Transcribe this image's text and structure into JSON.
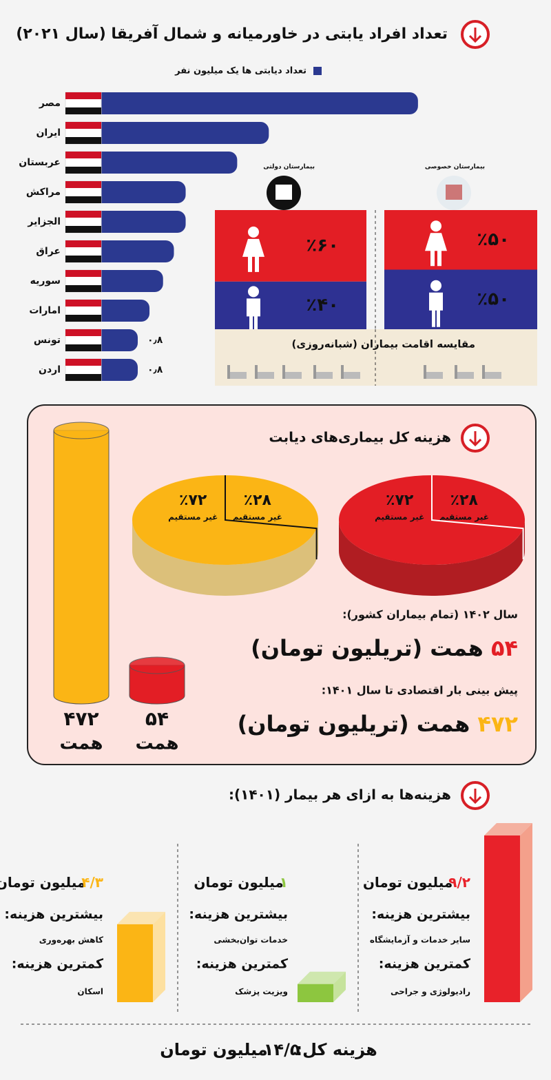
{
  "chart_data": [
    {
      "type": "bar",
      "orientation": "horizontal",
      "title": "تعداد افراد یابتی در خاورمیانه و شمال آفریقا (سال ۲۰۲۱)",
      "legend": "تعداد دیابتی ها یک میلیون نفر",
      "categories": [
        "مصر",
        "ایران",
        "عربستان",
        "مراکش",
        "الجزایر",
        "عراق",
        "سوریه",
        "امارات",
        "تونس",
        "اردن"
      ],
      "values": [
        3.9,
        2.25,
        1.9,
        1.33,
        1.33,
        1.2,
        1.08,
        0.93,
        0.8,
        0.8
      ],
      "value_labels": [
        null,
        null,
        null,
        null,
        null,
        null,
        null,
        null,
        "۰٫۸",
        "۰٫۸"
      ],
      "xlim": [
        0,
        4
      ],
      "color": "#2b3990"
    },
    {
      "type": "share",
      "categories": [
        "بیمارستان خصوصی",
        "بیمارستان دولتی"
      ],
      "series": [
        {
          "color": "#e31e25",
          "label_color": "#f7b21d",
          "values": [
            50,
            60
          ],
          "value_labels": [
            "٪۵۰",
            "٪۶۰"
          ]
        },
        {
          "color": "#2e3192",
          "label_color": "#ffffff",
          "values": [
            50,
            40
          ],
          "value_labels": [
            "٪۵۰",
            "٪۴۰"
          ]
        }
      ],
      "caption": "مقایسه اقامت بیماران (شبانه‌روزی)"
    },
    {
      "type": "pie",
      "title": "هزینه کل بیماری‌های دیابت",
      "categories": [
        "غیر مستقیم",
        "غیر مستقیم"
      ],
      "values": [
        28,
        72
      ],
      "value_labels": [
        "٪۲۸",
        "٪۷۲"
      ],
      "color": "#e31e25",
      "side_color": "#b01d22",
      "label_color": "#ffffff"
    },
    {
      "type": "pie",
      "categories": [
        "غیر مستقیم",
        "غیر مستقیم"
      ],
      "values": [
        28,
        72
      ],
      "value_labels": [
        "٪۲۸",
        "٪۷۲"
      ],
      "color": "#fbb515",
      "side_color": "#dcc07a",
      "label_color": "#111111"
    },
    {
      "type": "cylinder",
      "values": [
        472,
        54
      ],
      "value_labels": [
        "۴۷۲",
        "۵۴"
      ],
      "unit": "همت",
      "colors": [
        "#fbb515",
        "#e31e25"
      ],
      "notes": [
        {
          "text": "سال ۱۴۰۲ (تمام بیماران کشور):",
          "unit": "همت (تریلیون تومان)"
        },
        {
          "text": "پیش بینی بار اقتصادی تا سال ۱۴۰۱:",
          "unit": "همت (تریلیون تومان)"
        }
      ]
    },
    {
      "type": "bar3d",
      "title": "هزینه‌ها به ازای هر بیمار (۱۴۰۱):",
      "values": [
        9.2,
        1,
        4.3
      ],
      "value_labels": [
        "۹/۲",
        "۱",
        "۴/۳"
      ],
      "unit": "میلیون تومان",
      "colors": [
        "#e8222a",
        "#8dc63f",
        "#fbb515"
      ],
      "side_colors": [
        "#f4a08b",
        "#c6e39c",
        "#fde0a0"
      ],
      "most_label": "بیشترین هزینه:",
      "least_label": "کمترین هزینه:",
      "most": [
        "سایر خدمات و آزمایشگاه",
        "خدمات توان‌بخشی",
        "کاهش بهره‌وری"
      ],
      "least": [
        "رادیولوژی و جراحی",
        "ویزیت پزشک",
        "اسکان"
      ],
      "total_label": "هزینه کل:",
      "total": "۱۴/۵"
    }
  ]
}
